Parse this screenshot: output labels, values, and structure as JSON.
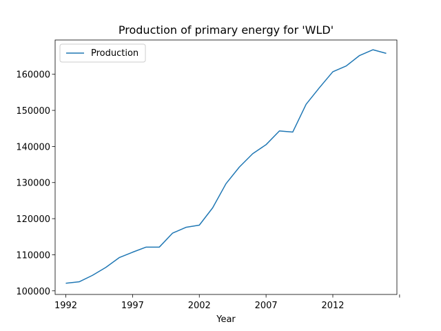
{
  "chart_data": {
    "type": "line",
    "title": "Production of primary energy for 'WLD'",
    "xlabel": "Year",
    "ylabel": "",
    "x": [
      1992,
      1993,
      1994,
      1995,
      1996,
      1997,
      1998,
      1999,
      2000,
      2001,
      2002,
      2003,
      2004,
      2005,
      2006,
      2007,
      2008,
      2009,
      2010,
      2011,
      2012,
      2013,
      2014,
      2015,
      2016
    ],
    "series": [
      {
        "name": "Production",
        "color": "#1f77b4",
        "values": [
          102100,
          102500,
          104300,
          106500,
          109200,
          110700,
          112100,
          112100,
          116000,
          117600,
          118200,
          123000,
          129700,
          134300,
          138000,
          140500,
          144300,
          144000,
          151700,
          156300,
          160700,
          162300,
          165200,
          166800,
          165800
        ]
      }
    ],
    "xlim": [
      1991.2,
      2016.8
    ],
    "ylim": [
      99000,
      169500
    ],
    "xticks": [
      1992,
      1997,
      2002,
      2007,
      2012,
      2017
    ],
    "xtick_labels": [
      "1992",
      "1997",
      "2002",
      "2007",
      "2012",
      ""
    ],
    "yticks": [
      100000,
      110000,
      120000,
      130000,
      140000,
      150000,
      160000
    ],
    "ytick_labels": [
      "100000",
      "110000",
      "120000",
      "130000",
      "140000",
      "150000",
      "160000"
    ],
    "legend_position": "upper-left",
    "grid": false
  }
}
